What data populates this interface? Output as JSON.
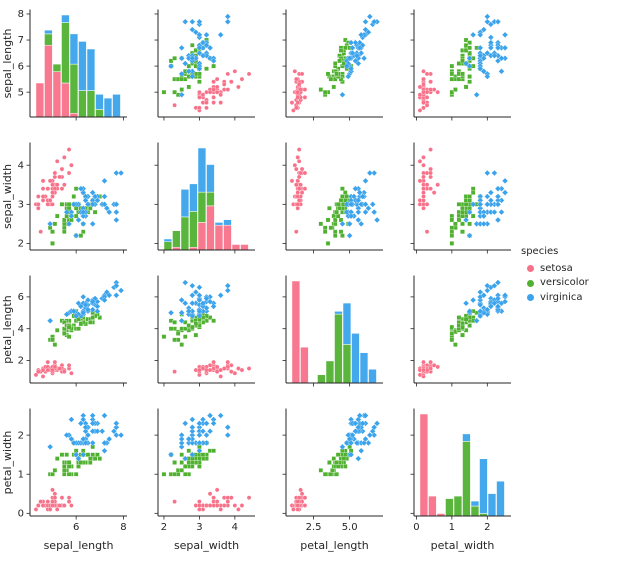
{
  "figure": {
    "background": "#ffffff",
    "text_color": "#262626",
    "axis_color": "#262626"
  },
  "chart_data": {
    "type": "scatter",
    "subtype": "pairplot",
    "title": "",
    "variables": [
      "sepal_length",
      "sepal_width",
      "petal_length",
      "petal_width"
    ],
    "diagonal": "stacked-histogram",
    "hist_bins": 10,
    "axes": {
      "grid": false,
      "spines": [
        "left",
        "bottom"
      ],
      "x_ticks": {
        "sepal_length": [
          "6",
          "8"
        ],
        "sepal_width": [
          "2",
          "3",
          "4"
        ],
        "petal_length": [
          "2.5",
          "5.0"
        ],
        "petal_width": [
          "0",
          "1",
          "2"
        ]
      },
      "y_ticks": {
        "sepal_length": [
          "5",
          "6",
          "7",
          "8"
        ],
        "sepal_width": [
          "2",
          "3",
          "4"
        ],
        "petal_length": [
          "2",
          "4",
          "6"
        ],
        "petal_width": [
          "0",
          "1",
          "2"
        ]
      }
    },
    "legend": {
      "title": "species",
      "position": "right",
      "entries": [
        {
          "label": "setosa",
          "color": "#f77189"
        },
        {
          "label": "versicolor",
          "color": "#50b131"
        },
        {
          "label": "virginica",
          "color": "#3ba3ec"
        }
      ]
    },
    "species": [
      {
        "name": "setosa",
        "color": "#f77189",
        "marker": "circle",
        "data": [
          [
            5.1,
            3.5,
            1.4,
            0.2
          ],
          [
            4.9,
            3.0,
            1.4,
            0.2
          ],
          [
            4.7,
            3.2,
            1.3,
            0.2
          ],
          [
            4.6,
            3.1,
            1.5,
            0.2
          ],
          [
            5.0,
            3.6,
            1.4,
            0.2
          ],
          [
            5.4,
            3.9,
            1.7,
            0.4
          ],
          [
            4.6,
            3.4,
            1.4,
            0.3
          ],
          [
            5.0,
            3.4,
            1.5,
            0.2
          ],
          [
            4.4,
            2.9,
            1.4,
            0.2
          ],
          [
            4.9,
            3.1,
            1.5,
            0.1
          ],
          [
            5.4,
            3.7,
            1.5,
            0.2
          ],
          [
            4.8,
            3.4,
            1.6,
            0.2
          ],
          [
            4.8,
            3.0,
            1.4,
            0.1
          ],
          [
            4.3,
            3.0,
            1.1,
            0.1
          ],
          [
            5.8,
            4.0,
            1.2,
            0.2
          ],
          [
            5.7,
            4.4,
            1.5,
            0.4
          ],
          [
            5.4,
            3.9,
            1.3,
            0.4
          ],
          [
            5.1,
            3.5,
            1.4,
            0.3
          ],
          [
            5.7,
            3.8,
            1.7,
            0.3
          ],
          [
            5.1,
            3.8,
            1.5,
            0.3
          ],
          [
            5.4,
            3.4,
            1.7,
            0.2
          ],
          [
            5.1,
            3.7,
            1.5,
            0.4
          ],
          [
            4.6,
            3.6,
            1.0,
            0.2
          ],
          [
            5.1,
            3.3,
            1.7,
            0.5
          ],
          [
            4.8,
            3.4,
            1.9,
            0.2
          ],
          [
            5.0,
            3.0,
            1.6,
            0.2
          ],
          [
            5.0,
            3.4,
            1.6,
            0.4
          ],
          [
            5.2,
            3.5,
            1.5,
            0.2
          ],
          [
            5.2,
            3.4,
            1.4,
            0.2
          ],
          [
            4.7,
            3.2,
            1.6,
            0.2
          ],
          [
            4.8,
            3.1,
            1.6,
            0.2
          ],
          [
            5.4,
            3.4,
            1.5,
            0.4
          ],
          [
            5.2,
            4.1,
            1.5,
            0.1
          ],
          [
            5.5,
            4.2,
            1.4,
            0.2
          ],
          [
            4.9,
            3.1,
            1.5,
            0.2
          ],
          [
            5.0,
            3.2,
            1.2,
            0.2
          ],
          [
            5.5,
            3.5,
            1.3,
            0.2
          ],
          [
            4.9,
            3.6,
            1.4,
            0.1
          ],
          [
            4.4,
            3.0,
            1.3,
            0.2
          ],
          [
            5.1,
            3.4,
            1.5,
            0.2
          ],
          [
            5.0,
            3.5,
            1.3,
            0.3
          ],
          [
            4.5,
            2.3,
            1.3,
            0.3
          ],
          [
            4.4,
            3.2,
            1.3,
            0.2
          ],
          [
            5.0,
            3.5,
            1.6,
            0.6
          ],
          [
            5.1,
            3.8,
            1.9,
            0.4
          ],
          [
            4.8,
            3.0,
            1.4,
            0.3
          ],
          [
            5.1,
            3.8,
            1.6,
            0.2
          ],
          [
            4.6,
            3.2,
            1.4,
            0.2
          ],
          [
            5.3,
            3.7,
            1.5,
            0.2
          ],
          [
            5.0,
            3.3,
            1.4,
            0.2
          ]
        ]
      },
      {
        "name": "versicolor",
        "color": "#50b131",
        "marker": "square",
        "data": [
          [
            7.0,
            3.2,
            4.7,
            1.4
          ],
          [
            6.4,
            3.2,
            4.5,
            1.5
          ],
          [
            6.9,
            3.1,
            4.9,
            1.5
          ],
          [
            5.5,
            2.3,
            4.0,
            1.3
          ],
          [
            6.5,
            2.8,
            4.6,
            1.5
          ],
          [
            5.7,
            2.8,
            4.5,
            1.3
          ],
          [
            6.3,
            3.3,
            4.7,
            1.6
          ],
          [
            4.9,
            2.4,
            3.3,
            1.0
          ],
          [
            6.6,
            2.9,
            4.6,
            1.3
          ],
          [
            5.2,
            2.7,
            3.9,
            1.4
          ],
          [
            5.0,
            2.0,
            3.5,
            1.0
          ],
          [
            5.9,
            3.0,
            4.2,
            1.5
          ],
          [
            6.0,
            2.2,
            4.0,
            1.0
          ],
          [
            6.1,
            2.9,
            4.7,
            1.4
          ],
          [
            5.6,
            2.9,
            3.6,
            1.3
          ],
          [
            6.7,
            3.1,
            4.4,
            1.4
          ],
          [
            5.6,
            3.0,
            4.5,
            1.5
          ],
          [
            5.8,
            2.7,
            4.1,
            1.0
          ],
          [
            6.2,
            2.2,
            4.5,
            1.5
          ],
          [
            5.6,
            2.5,
            3.9,
            1.1
          ],
          [
            5.9,
            3.2,
            4.8,
            1.8
          ],
          [
            6.1,
            2.8,
            4.0,
            1.3
          ],
          [
            6.3,
            2.5,
            4.9,
            1.5
          ],
          [
            6.1,
            2.8,
            4.7,
            1.2
          ],
          [
            6.4,
            2.9,
            4.3,
            1.3
          ],
          [
            6.6,
            3.0,
            4.4,
            1.4
          ],
          [
            6.8,
            2.8,
            4.8,
            1.4
          ],
          [
            6.7,
            3.0,
            5.0,
            1.7
          ],
          [
            6.0,
            2.9,
            4.5,
            1.5
          ],
          [
            5.7,
            2.6,
            3.5,
            1.0
          ],
          [
            5.5,
            2.4,
            3.8,
            1.1
          ],
          [
            5.5,
            2.4,
            3.7,
            1.0
          ],
          [
            5.8,
            2.7,
            3.9,
            1.2
          ],
          [
            6.0,
            2.7,
            5.1,
            1.6
          ],
          [
            5.4,
            3.0,
            4.5,
            1.5
          ],
          [
            6.0,
            3.4,
            4.5,
            1.6
          ],
          [
            6.7,
            3.1,
            4.7,
            1.5
          ],
          [
            6.3,
            2.3,
            4.4,
            1.3
          ],
          [
            5.6,
            3.0,
            4.1,
            1.3
          ],
          [
            5.5,
            2.5,
            4.0,
            1.3
          ],
          [
            5.5,
            2.6,
            4.4,
            1.2
          ],
          [
            6.1,
            3.0,
            4.6,
            1.4
          ],
          [
            5.8,
            2.6,
            4.0,
            1.2
          ],
          [
            5.0,
            2.3,
            3.3,
            1.0
          ],
          [
            5.6,
            2.7,
            4.2,
            1.3
          ],
          [
            5.7,
            3.0,
            4.2,
            1.2
          ],
          [
            5.7,
            2.9,
            4.2,
            1.3
          ],
          [
            6.2,
            2.9,
            4.3,
            1.3
          ],
          [
            5.1,
            2.5,
            3.0,
            1.1
          ],
          [
            5.7,
            2.8,
            4.1,
            1.3
          ]
        ]
      },
      {
        "name": "virginica",
        "color": "#3ba3ec",
        "marker": "diamond",
        "data": [
          [
            6.3,
            3.3,
            6.0,
            2.5
          ],
          [
            5.8,
            2.7,
            5.1,
            1.9
          ],
          [
            7.1,
            3.0,
            5.9,
            2.1
          ],
          [
            6.3,
            2.9,
            5.6,
            1.8
          ],
          [
            6.5,
            3.0,
            5.8,
            2.2
          ],
          [
            7.6,
            3.0,
            6.6,
            2.1
          ],
          [
            4.9,
            2.5,
            4.5,
            1.7
          ],
          [
            7.3,
            2.9,
            6.3,
            1.8
          ],
          [
            6.7,
            2.5,
            5.8,
            1.8
          ],
          [
            7.2,
            3.6,
            6.1,
            2.5
          ],
          [
            6.5,
            3.2,
            5.1,
            2.0
          ],
          [
            6.4,
            2.7,
            5.3,
            1.9
          ],
          [
            6.8,
            3.0,
            5.5,
            2.1
          ],
          [
            5.7,
            2.5,
            5.0,
            2.0
          ],
          [
            5.8,
            2.8,
            5.1,
            2.4
          ],
          [
            6.4,
            3.2,
            5.3,
            2.3
          ],
          [
            6.5,
            3.0,
            5.5,
            1.8
          ],
          [
            7.7,
            3.8,
            6.7,
            2.2
          ],
          [
            7.7,
            2.6,
            6.9,
            2.3
          ],
          [
            6.0,
            2.2,
            5.0,
            1.5
          ],
          [
            6.9,
            3.2,
            5.7,
            2.3
          ],
          [
            5.6,
            2.8,
            4.9,
            2.0
          ],
          [
            7.7,
            2.8,
            6.7,
            2.0
          ],
          [
            6.3,
            2.7,
            4.9,
            1.8
          ],
          [
            6.7,
            3.3,
            5.7,
            2.1
          ],
          [
            7.2,
            3.2,
            6.0,
            1.8
          ],
          [
            6.2,
            2.8,
            4.8,
            1.8
          ],
          [
            6.1,
            3.0,
            4.9,
            1.8
          ],
          [
            6.4,
            2.8,
            5.6,
            2.1
          ],
          [
            7.2,
            3.0,
            5.8,
            1.6
          ],
          [
            7.4,
            2.8,
            6.1,
            1.9
          ],
          [
            7.9,
            3.8,
            6.4,
            2.0
          ],
          [
            6.4,
            2.8,
            5.6,
            2.2
          ],
          [
            6.3,
            2.8,
            5.1,
            1.5
          ],
          [
            6.1,
            2.6,
            5.6,
            1.4
          ],
          [
            7.7,
            3.0,
            6.1,
            2.3
          ],
          [
            6.3,
            3.4,
            5.6,
            2.4
          ],
          [
            6.4,
            3.1,
            5.5,
            1.8
          ],
          [
            6.0,
            3.0,
            4.8,
            1.8
          ],
          [
            6.9,
            3.1,
            5.4,
            2.1
          ],
          [
            6.7,
            3.1,
            5.6,
            2.4
          ],
          [
            6.9,
            3.1,
            5.1,
            2.3
          ],
          [
            5.8,
            2.7,
            5.1,
            1.9
          ],
          [
            6.8,
            3.2,
            5.9,
            2.3
          ],
          [
            6.7,
            3.3,
            5.7,
            2.5
          ],
          [
            6.7,
            3.0,
            5.2,
            2.3
          ],
          [
            6.3,
            2.5,
            5.0,
            1.9
          ],
          [
            6.5,
            3.0,
            5.2,
            2.0
          ],
          [
            6.2,
            3.4,
            5.4,
            2.3
          ],
          [
            5.9,
            3.0,
            5.1,
            1.8
          ]
        ]
      }
    ]
  }
}
